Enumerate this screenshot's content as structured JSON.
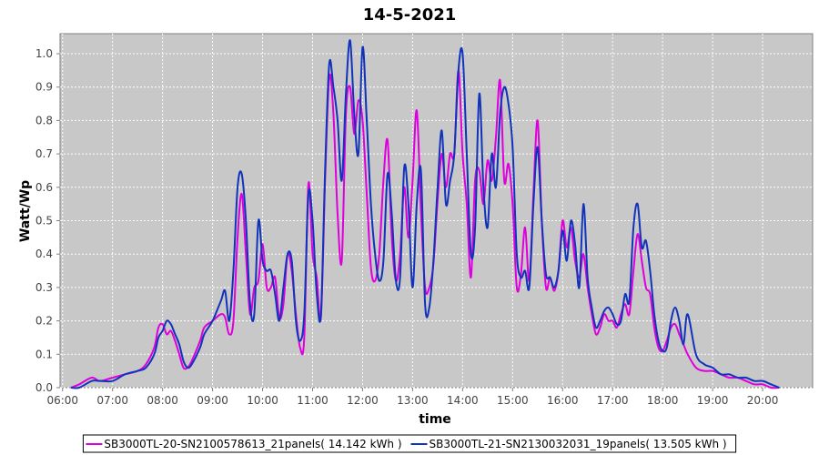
{
  "chart_data": {
    "type": "line",
    "title": "14-5-2021",
    "xlabel": "time",
    "ylabel": "Watt/Wp",
    "xlim": [
      "05:57",
      "21:00"
    ],
    "ylim": [
      0,
      1.06
    ],
    "grid": true,
    "legend_position": "bottom",
    "x_ticks": [
      "06:00",
      "07:00",
      "08:00",
      "09:00",
      "10:00",
      "11:00",
      "12:00",
      "13:00",
      "14:00",
      "15:00",
      "16:00",
      "17:00",
      "18:00",
      "19:00",
      "20:00"
    ],
    "y_ticks": [
      "0.0",
      "0.1",
      "0.2",
      "0.3",
      "0.4",
      "0.5",
      "0.6",
      "0.7",
      "0.8",
      "0.9",
      "1.0"
    ],
    "series": [
      {
        "name": "SB3000TL-20-SN2100578613_21panels( 14.142 kWh )",
        "color": "#dd00dd",
        "points": [
          [
            "06:10",
            0.0
          ],
          [
            "06:20",
            0.01
          ],
          [
            "06:35",
            0.03
          ],
          [
            "06:45",
            0.02
          ],
          [
            "07:00",
            0.03
          ],
          [
            "07:15",
            0.04
          ],
          [
            "07:30",
            0.05
          ],
          [
            "07:40",
            0.07
          ],
          [
            "07:50",
            0.12
          ],
          [
            "07:55",
            0.18
          ],
          [
            "08:00",
            0.19
          ],
          [
            "08:05",
            0.16
          ],
          [
            "08:10",
            0.17
          ],
          [
            "08:15",
            0.14
          ],
          [
            "08:20",
            0.1
          ],
          [
            "08:25",
            0.06
          ],
          [
            "08:30",
            0.06
          ],
          [
            "08:35",
            0.08
          ],
          [
            "08:45",
            0.14
          ],
          [
            "08:50",
            0.18
          ],
          [
            "09:00",
            0.2
          ],
          [
            "09:10",
            0.22
          ],
          [
            "09:15",
            0.21
          ],
          [
            "09:20",
            0.16
          ],
          [
            "09:25",
            0.2
          ],
          [
            "09:30",
            0.45
          ],
          [
            "09:35",
            0.58
          ],
          [
            "09:40",
            0.4
          ],
          [
            "09:45",
            0.22
          ],
          [
            "09:50",
            0.3
          ],
          [
            "09:55",
            0.32
          ],
          [
            "10:00",
            0.43
          ],
          [
            "10:05",
            0.3
          ],
          [
            "10:10",
            0.3
          ],
          [
            "10:15",
            0.33
          ],
          [
            "10:20",
            0.21
          ],
          [
            "10:25",
            0.25
          ],
          [
            "10:30",
            0.4
          ],
          [
            "10:35",
            0.35
          ],
          [
            "10:40",
            0.22
          ],
          [
            "10:45",
            0.12
          ],
          [
            "10:50",
            0.15
          ],
          [
            "10:55",
            0.61
          ],
          [
            "11:00",
            0.4
          ],
          [
            "11:05",
            0.33
          ],
          [
            "11:10",
            0.21
          ],
          [
            "11:15",
            0.62
          ],
          [
            "11:20",
            0.93
          ],
          [
            "11:25",
            0.82
          ],
          [
            "11:30",
            0.52
          ],
          [
            "11:35",
            0.38
          ],
          [
            "11:40",
            0.82
          ],
          [
            "11:45",
            0.9
          ],
          [
            "11:50",
            0.76
          ],
          [
            "11:55",
            0.86
          ],
          [
            "12:00",
            0.8
          ],
          [
            "12:05",
            0.58
          ],
          [
            "12:10",
            0.36
          ],
          [
            "12:15",
            0.32
          ],
          [
            "12:20",
            0.4
          ],
          [
            "12:25",
            0.62
          ],
          [
            "12:30",
            0.74
          ],
          [
            "12:35",
            0.45
          ],
          [
            "12:40",
            0.32
          ],
          [
            "12:45",
            0.4
          ],
          [
            "12:50",
            0.6
          ],
          [
            "12:55",
            0.45
          ],
          [
            "13:00",
            0.62
          ],
          [
            "13:05",
            0.83
          ],
          [
            "13:10",
            0.53
          ],
          [
            "13:15",
            0.3
          ],
          [
            "13:20",
            0.3
          ],
          [
            "13:25",
            0.37
          ],
          [
            "13:30",
            0.56
          ],
          [
            "13:35",
            0.7
          ],
          [
            "13:40",
            0.6
          ],
          [
            "13:45",
            0.7
          ],
          [
            "13:50",
            0.7
          ],
          [
            "13:55",
            0.95
          ],
          [
            "14:00",
            0.7
          ],
          [
            "14:05",
            0.55
          ],
          [
            "14:10",
            0.33
          ],
          [
            "14:15",
            0.62
          ],
          [
            "14:20",
            0.65
          ],
          [
            "14:25",
            0.55
          ],
          [
            "14:30",
            0.68
          ],
          [
            "14:35",
            0.62
          ],
          [
            "14:40",
            0.75
          ],
          [
            "14:45",
            0.92
          ],
          [
            "14:50",
            0.62
          ],
          [
            "14:55",
            0.67
          ],
          [
            "15:00",
            0.55
          ],
          [
            "15:05",
            0.3
          ],
          [
            "15:10",
            0.34
          ],
          [
            "15:15",
            0.48
          ],
          [
            "15:20",
            0.32
          ],
          [
            "15:25",
            0.58
          ],
          [
            "15:30",
            0.8
          ],
          [
            "15:35",
            0.5
          ],
          [
            "15:40",
            0.3
          ],
          [
            "15:45",
            0.33
          ],
          [
            "15:50",
            0.29
          ],
          [
            "15:55",
            0.35
          ],
          [
            "16:00",
            0.5
          ],
          [
            "16:05",
            0.42
          ],
          [
            "16:10",
            0.48
          ],
          [
            "16:15",
            0.38
          ],
          [
            "16:20",
            0.33
          ],
          [
            "16:25",
            0.4
          ],
          [
            "16:30",
            0.3
          ],
          [
            "16:35",
            0.22
          ],
          [
            "16:40",
            0.16
          ],
          [
            "16:45",
            0.18
          ],
          [
            "16:50",
            0.22
          ],
          [
            "16:55",
            0.2
          ],
          [
            "17:00",
            0.2
          ],
          [
            "17:05",
            0.18
          ],
          [
            "17:10",
            0.22
          ],
          [
            "17:15",
            0.25
          ],
          [
            "17:20",
            0.22
          ],
          [
            "17:25",
            0.35
          ],
          [
            "17:30",
            0.46
          ],
          [
            "17:35",
            0.38
          ],
          [
            "17:40",
            0.3
          ],
          [
            "17:45",
            0.28
          ],
          [
            "17:50",
            0.18
          ],
          [
            "17:55",
            0.12
          ],
          [
            "18:00",
            0.11
          ],
          [
            "18:05",
            0.14
          ],
          [
            "18:10",
            0.18
          ],
          [
            "18:15",
            0.19
          ],
          [
            "18:20",
            0.16
          ],
          [
            "18:25",
            0.13
          ],
          [
            "18:30",
            0.1
          ],
          [
            "18:40",
            0.06
          ],
          [
            "18:50",
            0.05
          ],
          [
            "19:00",
            0.05
          ],
          [
            "19:10",
            0.04
          ],
          [
            "19:20",
            0.03
          ],
          [
            "19:30",
            0.03
          ],
          [
            "19:40",
            0.02
          ],
          [
            "19:50",
            0.01
          ],
          [
            "20:00",
            0.01
          ],
          [
            "20:10",
            0.0
          ],
          [
            "20:20",
            0.0
          ]
        ]
      },
      {
        "name": "SB3000TL-21-SN2130032031_19panels( 13.505 kWh )",
        "color": "#1133bb",
        "points": [
          [
            "06:10",
            0.0
          ],
          [
            "06:20",
            0.0
          ],
          [
            "06:35",
            0.02
          ],
          [
            "06:45",
            0.02
          ],
          [
            "07:00",
            0.02
          ],
          [
            "07:15",
            0.04
          ],
          [
            "07:30",
            0.05
          ],
          [
            "07:40",
            0.06
          ],
          [
            "07:50",
            0.1
          ],
          [
            "07:55",
            0.15
          ],
          [
            "08:00",
            0.17
          ],
          [
            "08:05",
            0.2
          ],
          [
            "08:10",
            0.19
          ],
          [
            "08:15",
            0.16
          ],
          [
            "08:20",
            0.13
          ],
          [
            "08:25",
            0.08
          ],
          [
            "08:30",
            0.06
          ],
          [
            "08:35",
            0.07
          ],
          [
            "08:45",
            0.12
          ],
          [
            "08:50",
            0.16
          ],
          [
            "09:00",
            0.2
          ],
          [
            "09:10",
            0.26
          ],
          [
            "09:15",
            0.29
          ],
          [
            "09:20",
            0.2
          ],
          [
            "09:25",
            0.35
          ],
          [
            "09:30",
            0.6
          ],
          [
            "09:35",
            0.64
          ],
          [
            "09:40",
            0.5
          ],
          [
            "09:45",
            0.25
          ],
          [
            "09:50",
            0.22
          ],
          [
            "09:55",
            0.5
          ],
          [
            "10:00",
            0.38
          ],
          [
            "10:05",
            0.35
          ],
          [
            "10:10",
            0.35
          ],
          [
            "10:15",
            0.28
          ],
          [
            "10:20",
            0.2
          ],
          [
            "10:25",
            0.3
          ],
          [
            "10:30",
            0.4
          ],
          [
            "10:35",
            0.38
          ],
          [
            "10:40",
            0.2
          ],
          [
            "10:45",
            0.14
          ],
          [
            "10:50",
            0.22
          ],
          [
            "10:55",
            0.58
          ],
          [
            "11:00",
            0.5
          ],
          [
            "11:05",
            0.28
          ],
          [
            "11:10",
            0.22
          ],
          [
            "11:15",
            0.65
          ],
          [
            "11:20",
            0.97
          ],
          [
            "11:25",
            0.9
          ],
          [
            "11:30",
            0.8
          ],
          [
            "11:35",
            0.62
          ],
          [
            "11:40",
            0.88
          ],
          [
            "11:45",
            1.04
          ],
          [
            "11:50",
            0.82
          ],
          [
            "11:55",
            0.7
          ],
          [
            "12:00",
            1.02
          ],
          [
            "12:05",
            0.8
          ],
          [
            "12:10",
            0.55
          ],
          [
            "12:15",
            0.4
          ],
          [
            "12:20",
            0.32
          ],
          [
            "12:25",
            0.38
          ],
          [
            "12:30",
            0.64
          ],
          [
            "12:35",
            0.52
          ],
          [
            "12:40",
            0.32
          ],
          [
            "12:45",
            0.33
          ],
          [
            "12:50",
            0.66
          ],
          [
            "12:55",
            0.55
          ],
          [
            "13:00",
            0.3
          ],
          [
            "13:05",
            0.55
          ],
          [
            "13:10",
            0.65
          ],
          [
            "13:15",
            0.25
          ],
          [
            "13:20",
            0.24
          ],
          [
            "13:25",
            0.38
          ],
          [
            "13:30",
            0.6
          ],
          [
            "13:35",
            0.77
          ],
          [
            "13:40",
            0.55
          ],
          [
            "13:45",
            0.62
          ],
          [
            "13:50",
            0.7
          ],
          [
            "13:55",
            0.95
          ],
          [
            "14:00",
            1.0
          ],
          [
            "14:05",
            0.7
          ],
          [
            "14:10",
            0.4
          ],
          [
            "14:15",
            0.48
          ],
          [
            "14:20",
            0.88
          ],
          [
            "14:25",
            0.6
          ],
          [
            "14:30",
            0.48
          ],
          [
            "14:35",
            0.7
          ],
          [
            "14:40",
            0.6
          ],
          [
            "14:45",
            0.82
          ],
          [
            "14:50",
            0.9
          ],
          [
            "14:55",
            0.85
          ],
          [
            "15:00",
            0.72
          ],
          [
            "15:05",
            0.4
          ],
          [
            "15:10",
            0.33
          ],
          [
            "15:15",
            0.35
          ],
          [
            "15:20",
            0.3
          ],
          [
            "15:25",
            0.55
          ],
          [
            "15:30",
            0.72
          ],
          [
            "15:35",
            0.5
          ],
          [
            "15:40",
            0.34
          ],
          [
            "15:45",
            0.33
          ],
          [
            "15:50",
            0.3
          ],
          [
            "15:55",
            0.35
          ],
          [
            "16:00",
            0.47
          ],
          [
            "16:05",
            0.38
          ],
          [
            "16:10",
            0.5
          ],
          [
            "16:15",
            0.43
          ],
          [
            "16:20",
            0.3
          ],
          [
            "16:25",
            0.55
          ],
          [
            "16:30",
            0.33
          ],
          [
            "16:35",
            0.24
          ],
          [
            "16:40",
            0.18
          ],
          [
            "16:45",
            0.2
          ],
          [
            "16:50",
            0.23
          ],
          [
            "16:55",
            0.24
          ],
          [
            "17:00",
            0.22
          ],
          [
            "17:05",
            0.19
          ],
          [
            "17:10",
            0.2
          ],
          [
            "17:15",
            0.28
          ],
          [
            "17:20",
            0.26
          ],
          [
            "17:25",
            0.48
          ],
          [
            "17:30",
            0.55
          ],
          [
            "17:35",
            0.42
          ],
          [
            "17:40",
            0.44
          ],
          [
            "17:45",
            0.35
          ],
          [
            "17:50",
            0.22
          ],
          [
            "17:55",
            0.14
          ],
          [
            "18:00",
            0.11
          ],
          [
            "18:05",
            0.12
          ],
          [
            "18:10",
            0.2
          ],
          [
            "18:15",
            0.24
          ],
          [
            "18:20",
            0.2
          ],
          [
            "18:25",
            0.13
          ],
          [
            "18:30",
            0.22
          ],
          [
            "18:40",
            0.1
          ],
          [
            "18:50",
            0.07
          ],
          [
            "19:00",
            0.06
          ],
          [
            "19:10",
            0.04
          ],
          [
            "19:20",
            0.04
          ],
          [
            "19:30",
            0.03
          ],
          [
            "19:40",
            0.03
          ],
          [
            "19:50",
            0.02
          ],
          [
            "20:00",
            0.02
          ],
          [
            "20:10",
            0.01
          ],
          [
            "20:20",
            0.0
          ]
        ]
      }
    ]
  }
}
